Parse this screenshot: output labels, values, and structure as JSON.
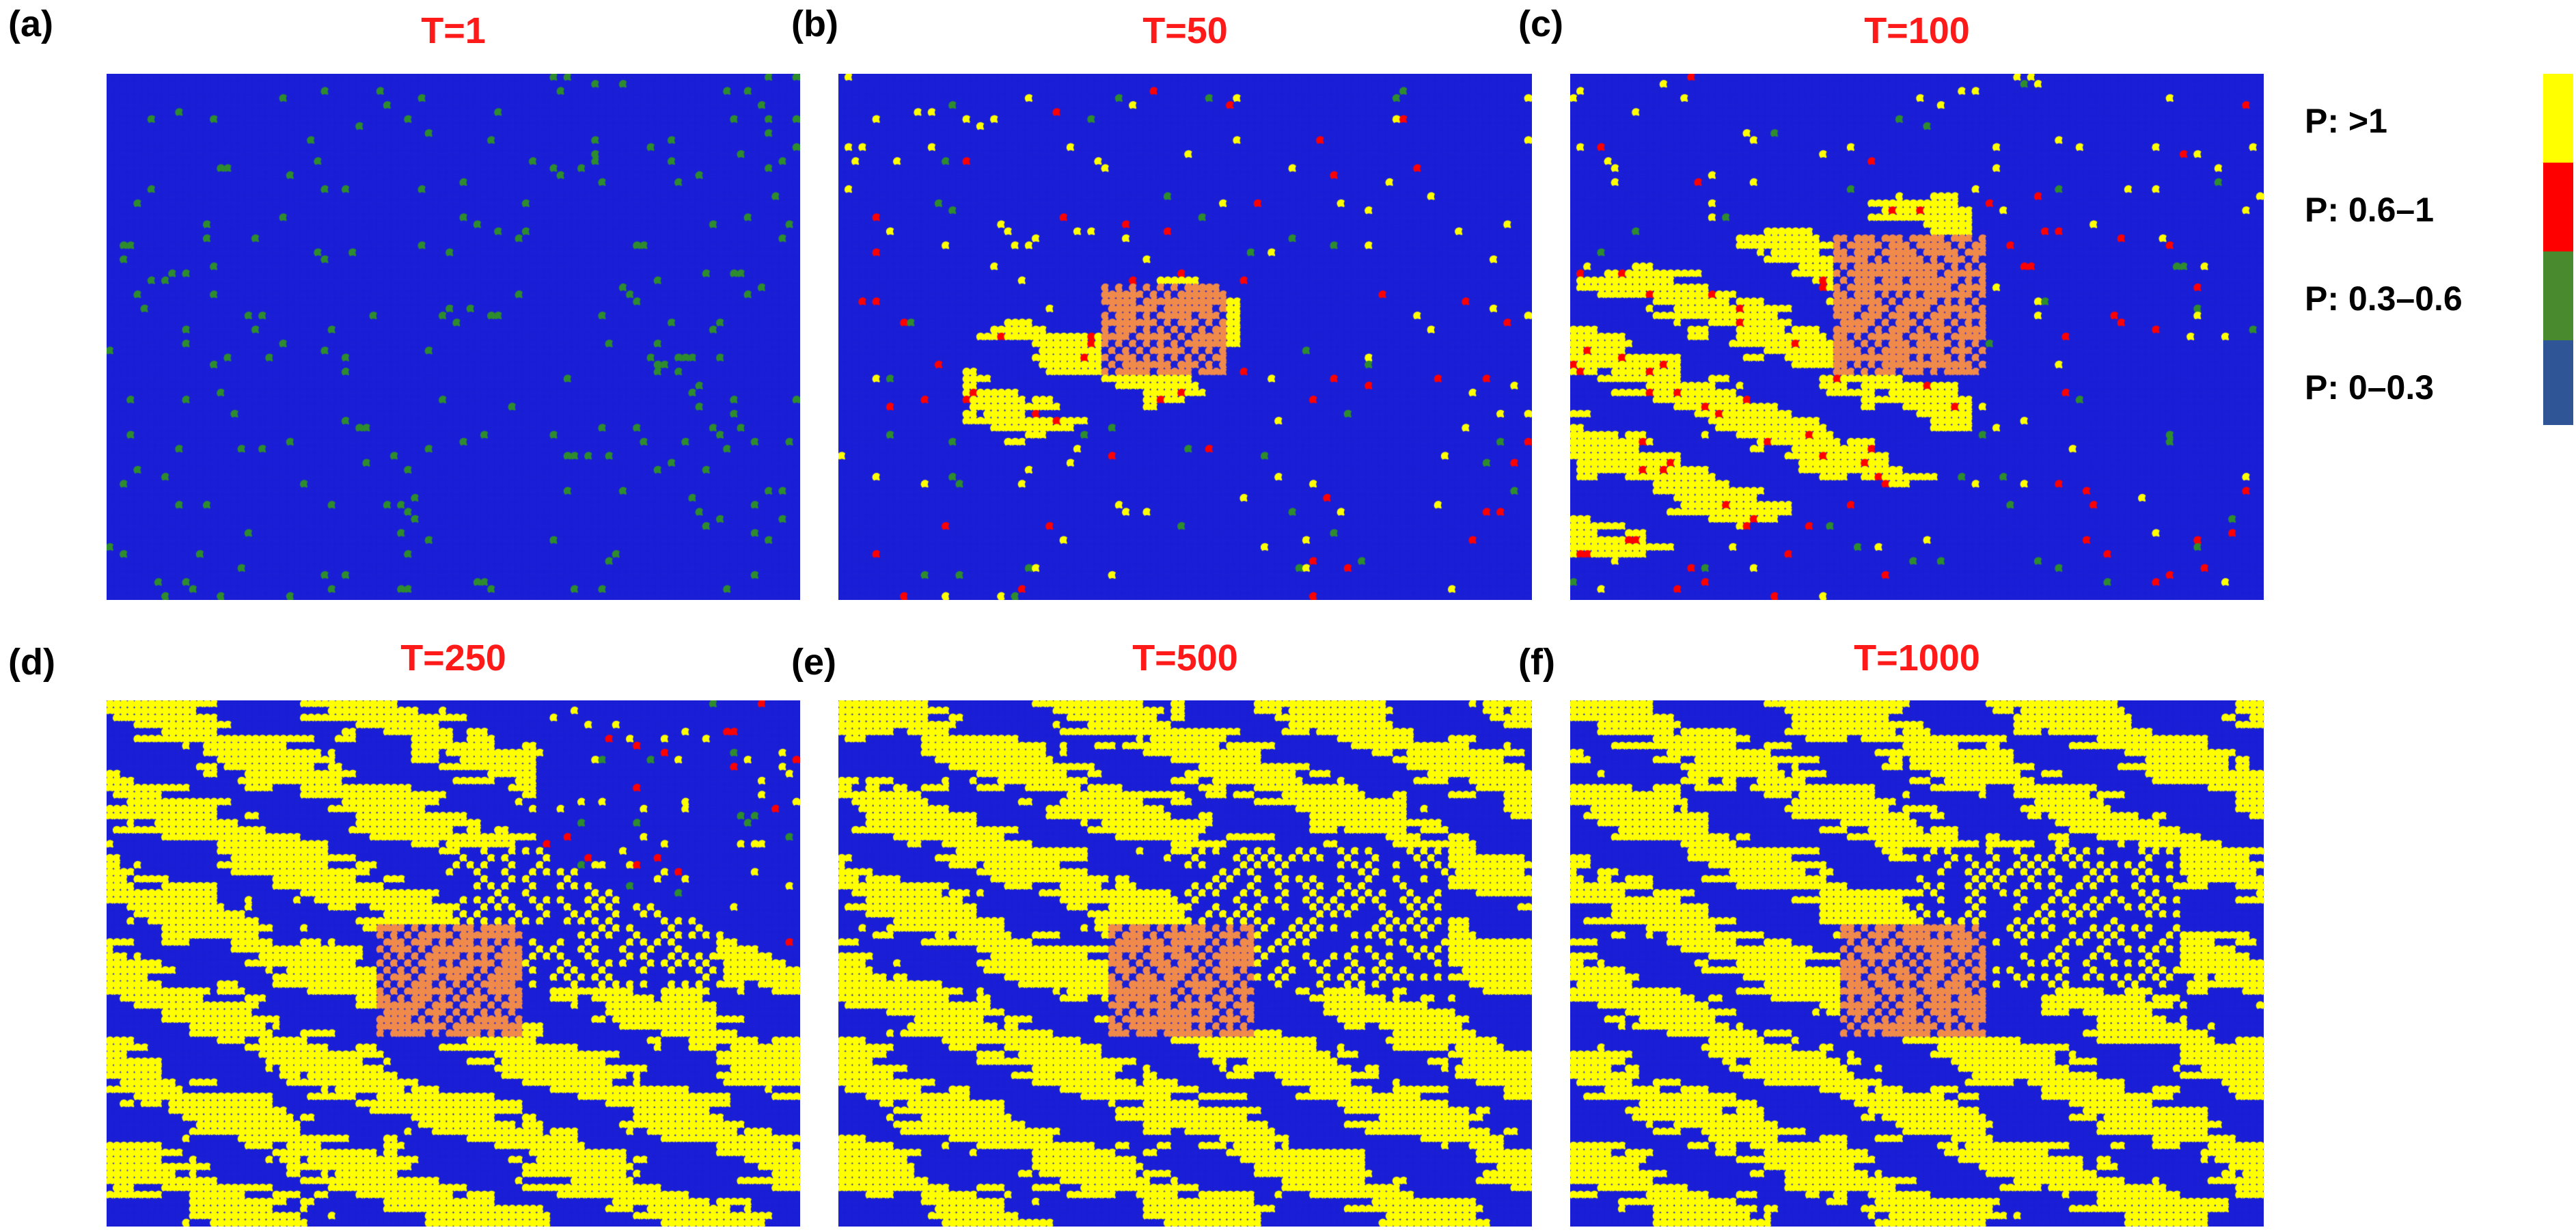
{
  "panels": [
    {
      "letter": "(a)",
      "title": "T=1"
    },
    {
      "letter": "(b)",
      "title": "T=50"
    },
    {
      "letter": "(c)",
      "title": "T=100"
    },
    {
      "letter": "(d)",
      "title": "T=250"
    },
    {
      "letter": "(e)",
      "title": "T=500"
    },
    {
      "letter": "(f)",
      "title": "T=1000"
    }
  ],
  "legend": [
    {
      "label": "P: >1",
      "color": "#ffff00"
    },
    {
      "label": "P: 0.6–1",
      "color": "#ff0000"
    },
    {
      "label": "P: 0.3–0.6",
      "color": "#4a8a2e"
    },
    {
      "label": "P: 0–0.3",
      "color": "#2f5597"
    }
  ],
  "colors": {
    "background_blue": "#1a1fd6",
    "yellow": "#ffff00",
    "red": "#ff0000",
    "green": "#2e8b2e",
    "orange": "#f08a4b"
  }
}
